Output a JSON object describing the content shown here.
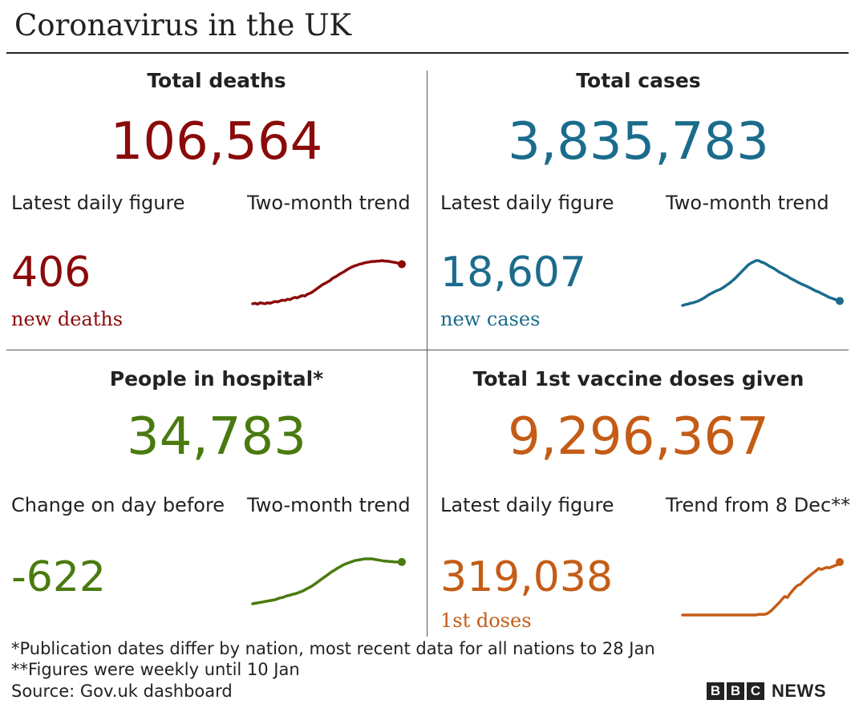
{
  "title": "Coronavirus in the UK",
  "colors": {
    "deaths": "#8b0a0a",
    "cases": "#1b6c8c",
    "hospital": "#4a7a0f",
    "vaccine": "#c45c16"
  },
  "chart_data": [
    {
      "type": "line",
      "title": "Total deaths",
      "total": "106,564",
      "left_label": "Latest daily figure",
      "right_label": "Two-month trend",
      "daily_value": "406",
      "daily_label": "new deaths",
      "color": "#8b0a0a",
      "x": [
        0,
        1,
        2,
        3,
        4,
        5,
        6,
        7,
        8,
        9,
        10,
        11,
        12,
        13,
        14,
        15,
        16,
        17,
        18,
        19,
        20,
        21,
        22,
        23,
        24,
        25,
        26,
        27,
        28,
        29,
        30,
        31,
        32,
        33,
        34,
        35,
        36,
        37,
        38,
        39,
        40,
        41,
        42,
        43,
        44,
        45,
        46,
        47,
        48,
        49,
        50,
        51,
        52,
        53,
        54,
        55,
        56,
        57,
        58,
        59,
        60
      ],
      "values": [
        0.04,
        0.05,
        0.03,
        0.06,
        0.05,
        0.04,
        0.06,
        0.05,
        0.07,
        0.09,
        0.08,
        0.1,
        0.12,
        0.11,
        0.14,
        0.13,
        0.16,
        0.18,
        0.17,
        0.2,
        0.22,
        0.21,
        0.25,
        0.27,
        0.3,
        0.34,
        0.38,
        0.42,
        0.46,
        0.49,
        0.52,
        0.55,
        0.6,
        0.63,
        0.66,
        0.7,
        0.73,
        0.76,
        0.8,
        0.83,
        0.86,
        0.88,
        0.9,
        0.92,
        0.93,
        0.95,
        0.96,
        0.97,
        0.98,
        0.98,
        0.99,
        0.99,
        1.0,
        0.99,
        0.99,
        0.98,
        0.97,
        0.96,
        0.95,
        0.93,
        0.92
      ]
    },
    {
      "type": "line",
      "title": "Total cases",
      "total": "3,835,783",
      "left_label": "Latest daily figure",
      "right_label": "Two-month trend",
      "daily_value": "18,607",
      "daily_label": "new cases",
      "color": "#1b6c8c",
      "x": [
        0,
        1,
        2,
        3,
        4,
        5,
        6,
        7,
        8,
        9,
        10,
        11,
        12,
        13,
        14,
        15,
        16,
        17,
        18,
        19,
        20,
        21,
        22,
        23,
        24,
        25,
        26,
        27,
        28,
        29,
        30,
        31,
        32,
        33,
        34,
        35,
        36,
        37,
        38,
        39,
        40,
        41,
        42,
        43,
        44,
        45,
        46,
        47,
        48,
        49,
        50,
        51,
        52,
        53,
        54,
        55,
        56,
        57,
        58,
        59,
        60
      ],
      "values": [
        0.0,
        0.02,
        0.03,
        0.05,
        0.06,
        0.08,
        0.1,
        0.13,
        0.16,
        0.2,
        0.24,
        0.27,
        0.3,
        0.33,
        0.35,
        0.38,
        0.42,
        0.46,
        0.5,
        0.55,
        0.6,
        0.66,
        0.72,
        0.78,
        0.84,
        0.9,
        0.94,
        0.97,
        1.0,
        1.0,
        0.97,
        0.95,
        0.92,
        0.88,
        0.85,
        0.82,
        0.78,
        0.74,
        0.71,
        0.68,
        0.65,
        0.61,
        0.58,
        0.55,
        0.52,
        0.49,
        0.46,
        0.44,
        0.41,
        0.38,
        0.35,
        0.32,
        0.3,
        0.27,
        0.24,
        0.21,
        0.18,
        0.16,
        0.14,
        0.12,
        0.1
      ]
    },
    {
      "type": "line",
      "title": "People in hospital*",
      "total": "34,783",
      "left_label": "Change on day before",
      "right_label": "Two-month trend",
      "daily_value": "-622",
      "daily_label": "",
      "color": "#4a7a0f",
      "x": [
        0,
        1,
        2,
        3,
        4,
        5,
        6,
        7,
        8,
        9,
        10,
        11,
        12,
        13,
        14,
        15,
        16,
        17,
        18,
        19,
        20,
        21,
        22,
        23,
        24,
        25,
        26,
        27,
        28,
        29,
        30,
        31,
        32,
        33,
        34,
        35,
        36,
        37,
        38,
        39,
        40,
        41,
        42,
        43,
        44,
        45,
        46,
        47,
        48,
        49,
        50,
        51,
        52,
        53,
        54,
        55,
        56,
        57,
        58,
        59,
        60
      ],
      "values": [
        0.0,
        0.01,
        0.02,
        0.03,
        0.04,
        0.05,
        0.06,
        0.07,
        0.08,
        0.09,
        0.11,
        0.13,
        0.14,
        0.16,
        0.18,
        0.19,
        0.21,
        0.22,
        0.24,
        0.26,
        0.28,
        0.31,
        0.34,
        0.37,
        0.4,
        0.44,
        0.48,
        0.52,
        0.56,
        0.6,
        0.64,
        0.68,
        0.72,
        0.75,
        0.79,
        0.82,
        0.85,
        0.88,
        0.9,
        0.92,
        0.94,
        0.96,
        0.97,
        0.98,
        0.99,
        1.0,
        1.0,
        1.0,
        1.0,
        0.99,
        0.98,
        0.97,
        0.96,
        0.95,
        0.95,
        0.94,
        0.94,
        0.93,
        0.93,
        0.93,
        0.93
      ]
    },
    {
      "type": "line",
      "title": "Total 1st vaccine doses given",
      "total": "9,296,367",
      "left_label": "Latest daily figure",
      "right_label": "Trend from 8 Dec**",
      "daily_value": "319,038",
      "daily_label": "1st doses",
      "color": "#c45c16",
      "x": [
        0,
        1,
        2,
        3,
        4,
        5,
        6,
        7,
        8,
        9,
        10,
        11,
        12,
        13,
        14,
        15,
        16,
        17,
        18,
        19,
        20,
        21,
        22,
        23,
        24,
        25,
        26,
        27,
        28,
        29,
        30,
        31,
        32,
        33,
        34,
        35,
        36,
        37,
        38,
        39,
        40,
        41,
        42,
        43,
        44,
        45,
        46,
        47,
        48,
        49,
        50,
        51,
        52,
        53,
        54,
        55,
        56,
        57,
        58,
        59,
        60
      ],
      "values": [
        0.0,
        0.0,
        0.0,
        0.0,
        0.0,
        0.0,
        0.0,
        0.0,
        0.0,
        0.0,
        0.0,
        0.0,
        0.0,
        0.0,
        0.0,
        0.0,
        0.0,
        0.0,
        0.0,
        0.0,
        0.0,
        0.0,
        0.0,
        0.0,
        0.0,
        0.0,
        0.0,
        0.0,
        0.0,
        0.01,
        0.01,
        0.01,
        0.02,
        0.05,
        0.09,
        0.14,
        0.19,
        0.24,
        0.3,
        0.35,
        0.33,
        0.4,
        0.46,
        0.52,
        0.56,
        0.58,
        0.63,
        0.68,
        0.72,
        0.76,
        0.8,
        0.84,
        0.88,
        0.86,
        0.88,
        0.9,
        0.89,
        0.91,
        0.93,
        0.95,
        1.0
      ]
    }
  ],
  "footnotes": [
    "*Publication dates differ by nation, most recent data for all nations to 28 Jan",
    "**Figures were weekly until 10 Jan",
    "Source: Gov.uk dashboard"
  ],
  "brand": {
    "letters": [
      "B",
      "B",
      "C"
    ],
    "word": "NEWS"
  }
}
